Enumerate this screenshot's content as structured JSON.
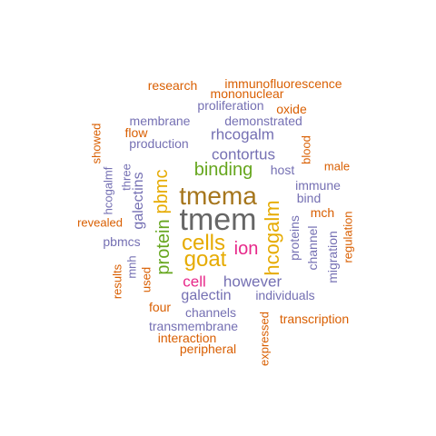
{
  "colors": {
    "orange": "#d95f02",
    "purple": "#7570b3",
    "magenta": "#e7298a",
    "green": "#66a61e",
    "gold": "#e6ab02",
    "brown": "#a6761d",
    "gray": "#666666"
  },
  "words": [
    {
      "text": "tmem",
      "color": "gray",
      "rotated": false
    },
    {
      "text": "tmema",
      "color": "brown",
      "rotated": false
    },
    {
      "text": "cells",
      "color": "gold",
      "rotated": false
    },
    {
      "text": "goat",
      "color": "gold",
      "rotated": false
    },
    {
      "text": "hcogalm",
      "color": "gold",
      "rotated": true
    },
    {
      "text": "protein",
      "color": "green",
      "rotated": true
    },
    {
      "text": "pbmc",
      "color": "gold",
      "rotated": true
    },
    {
      "text": "binding",
      "color": "green",
      "rotated": false
    },
    {
      "text": "ion",
      "color": "magenta",
      "rotated": false
    },
    {
      "text": "cell",
      "color": "magenta",
      "rotated": false
    },
    {
      "text": "however",
      "color": "purple",
      "rotated": false
    },
    {
      "text": "rhcogalm",
      "color": "purple",
      "rotated": false
    },
    {
      "text": "contortus",
      "color": "purple",
      "rotated": false
    },
    {
      "text": "galectin",
      "color": "purple",
      "rotated": false
    },
    {
      "text": "galectins",
      "color": "purple",
      "rotated": true
    },
    {
      "text": "research",
      "color": "orange",
      "rotated": false
    },
    {
      "text": "immunofluorescence",
      "color": "orange",
      "rotated": false
    },
    {
      "text": "mononuclear",
      "color": "orange",
      "rotated": false
    },
    {
      "text": "proliferation",
      "color": "purple",
      "rotated": false
    },
    {
      "text": "oxide",
      "color": "orange",
      "rotated": false
    },
    {
      "text": "membrane",
      "color": "purple",
      "rotated": false
    },
    {
      "text": "demonstrated",
      "color": "purple",
      "rotated": false
    },
    {
      "text": "flow",
      "color": "orange",
      "rotated": false
    },
    {
      "text": "production",
      "color": "purple",
      "rotated": false
    },
    {
      "text": "showed",
      "color": "orange",
      "rotated": true
    },
    {
      "text": "blood",
      "color": "orange",
      "rotated": true
    },
    {
      "text": "male",
      "color": "orange",
      "rotated": false
    },
    {
      "text": "host",
      "color": "purple",
      "rotated": false
    },
    {
      "text": "three",
      "color": "purple",
      "rotated": true
    },
    {
      "text": "hcogalmf",
      "color": "purple",
      "rotated": true
    },
    {
      "text": "immune",
      "color": "purple",
      "rotated": false
    },
    {
      "text": "bind",
      "color": "purple",
      "rotated": false
    },
    {
      "text": "mch",
      "color": "orange",
      "rotated": false
    },
    {
      "text": "revealed",
      "color": "orange",
      "rotated": false
    },
    {
      "text": "pbmcs",
      "color": "purple",
      "rotated": false
    },
    {
      "text": "proteins",
      "color": "purple",
      "rotated": true
    },
    {
      "text": "channel",
      "color": "purple",
      "rotated": true
    },
    {
      "text": "migration",
      "color": "purple",
      "rotated": true
    },
    {
      "text": "regulation",
      "color": "orange",
      "rotated": true
    },
    {
      "text": "results",
      "color": "orange",
      "rotated": true
    },
    {
      "text": "mnh",
      "color": "purple",
      "rotated": true
    },
    {
      "text": "used",
      "color": "orange",
      "rotated": true
    },
    {
      "text": "individuals",
      "color": "purple",
      "rotated": false
    },
    {
      "text": "four",
      "color": "orange",
      "rotated": false
    },
    {
      "text": "channels",
      "color": "purple",
      "rotated": false
    },
    {
      "text": "expressed",
      "color": "orange",
      "rotated": true
    },
    {
      "text": "transcription",
      "color": "orange",
      "rotated": false
    },
    {
      "text": "transmembrane",
      "color": "purple",
      "rotated": false
    },
    {
      "text": "interaction",
      "color": "orange",
      "rotated": false
    },
    {
      "text": "peripheral",
      "color": "orange",
      "rotated": false
    }
  ]
}
